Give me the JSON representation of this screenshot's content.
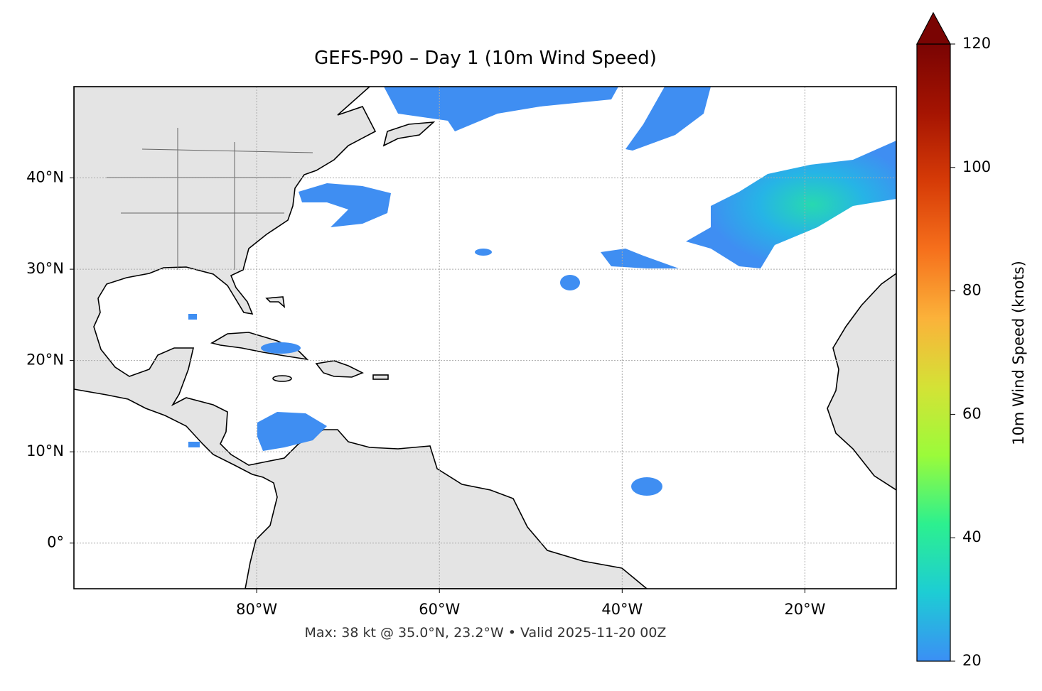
{
  "map": {
    "title": "GEFS-P90 – Day 1 (10m Wind Speed)",
    "footnote": "Max: 38 kt @ 35.0°N, 23.2°W • Valid 2025-11-20 00Z",
    "xlim": [
      -100,
      -10
    ],
    "ylim": [
      -5,
      50
    ],
    "xticks": [
      {
        "value": -80,
        "label": "80°W"
      },
      {
        "value": -60,
        "label": "60°W"
      },
      {
        "value": -40,
        "label": "40°W"
      },
      {
        "value": -20,
        "label": "20°W"
      }
    ],
    "yticks": [
      {
        "value": 0,
        "label": "0°"
      },
      {
        "value": 10,
        "label": "10°N"
      },
      {
        "value": 20,
        "label": "20°N"
      },
      {
        "value": 30,
        "label": "30°N"
      },
      {
        "value": 40,
        "label": "40°N"
      }
    ],
    "grid": true
  },
  "colorbar": {
    "label": "10m Wind Speed (knots)",
    "lim": [
      20,
      120
    ],
    "ticks": [
      20,
      40,
      60,
      80,
      100,
      120
    ],
    "colors": [
      "#3b8ff5",
      "#1dcdd4",
      "#2cf08f",
      "#9bfb3a",
      "#d4e236",
      "#fbb23a",
      "#f6701c",
      "#d63b07",
      "#a51402",
      "#7a0403"
    ]
  }
}
